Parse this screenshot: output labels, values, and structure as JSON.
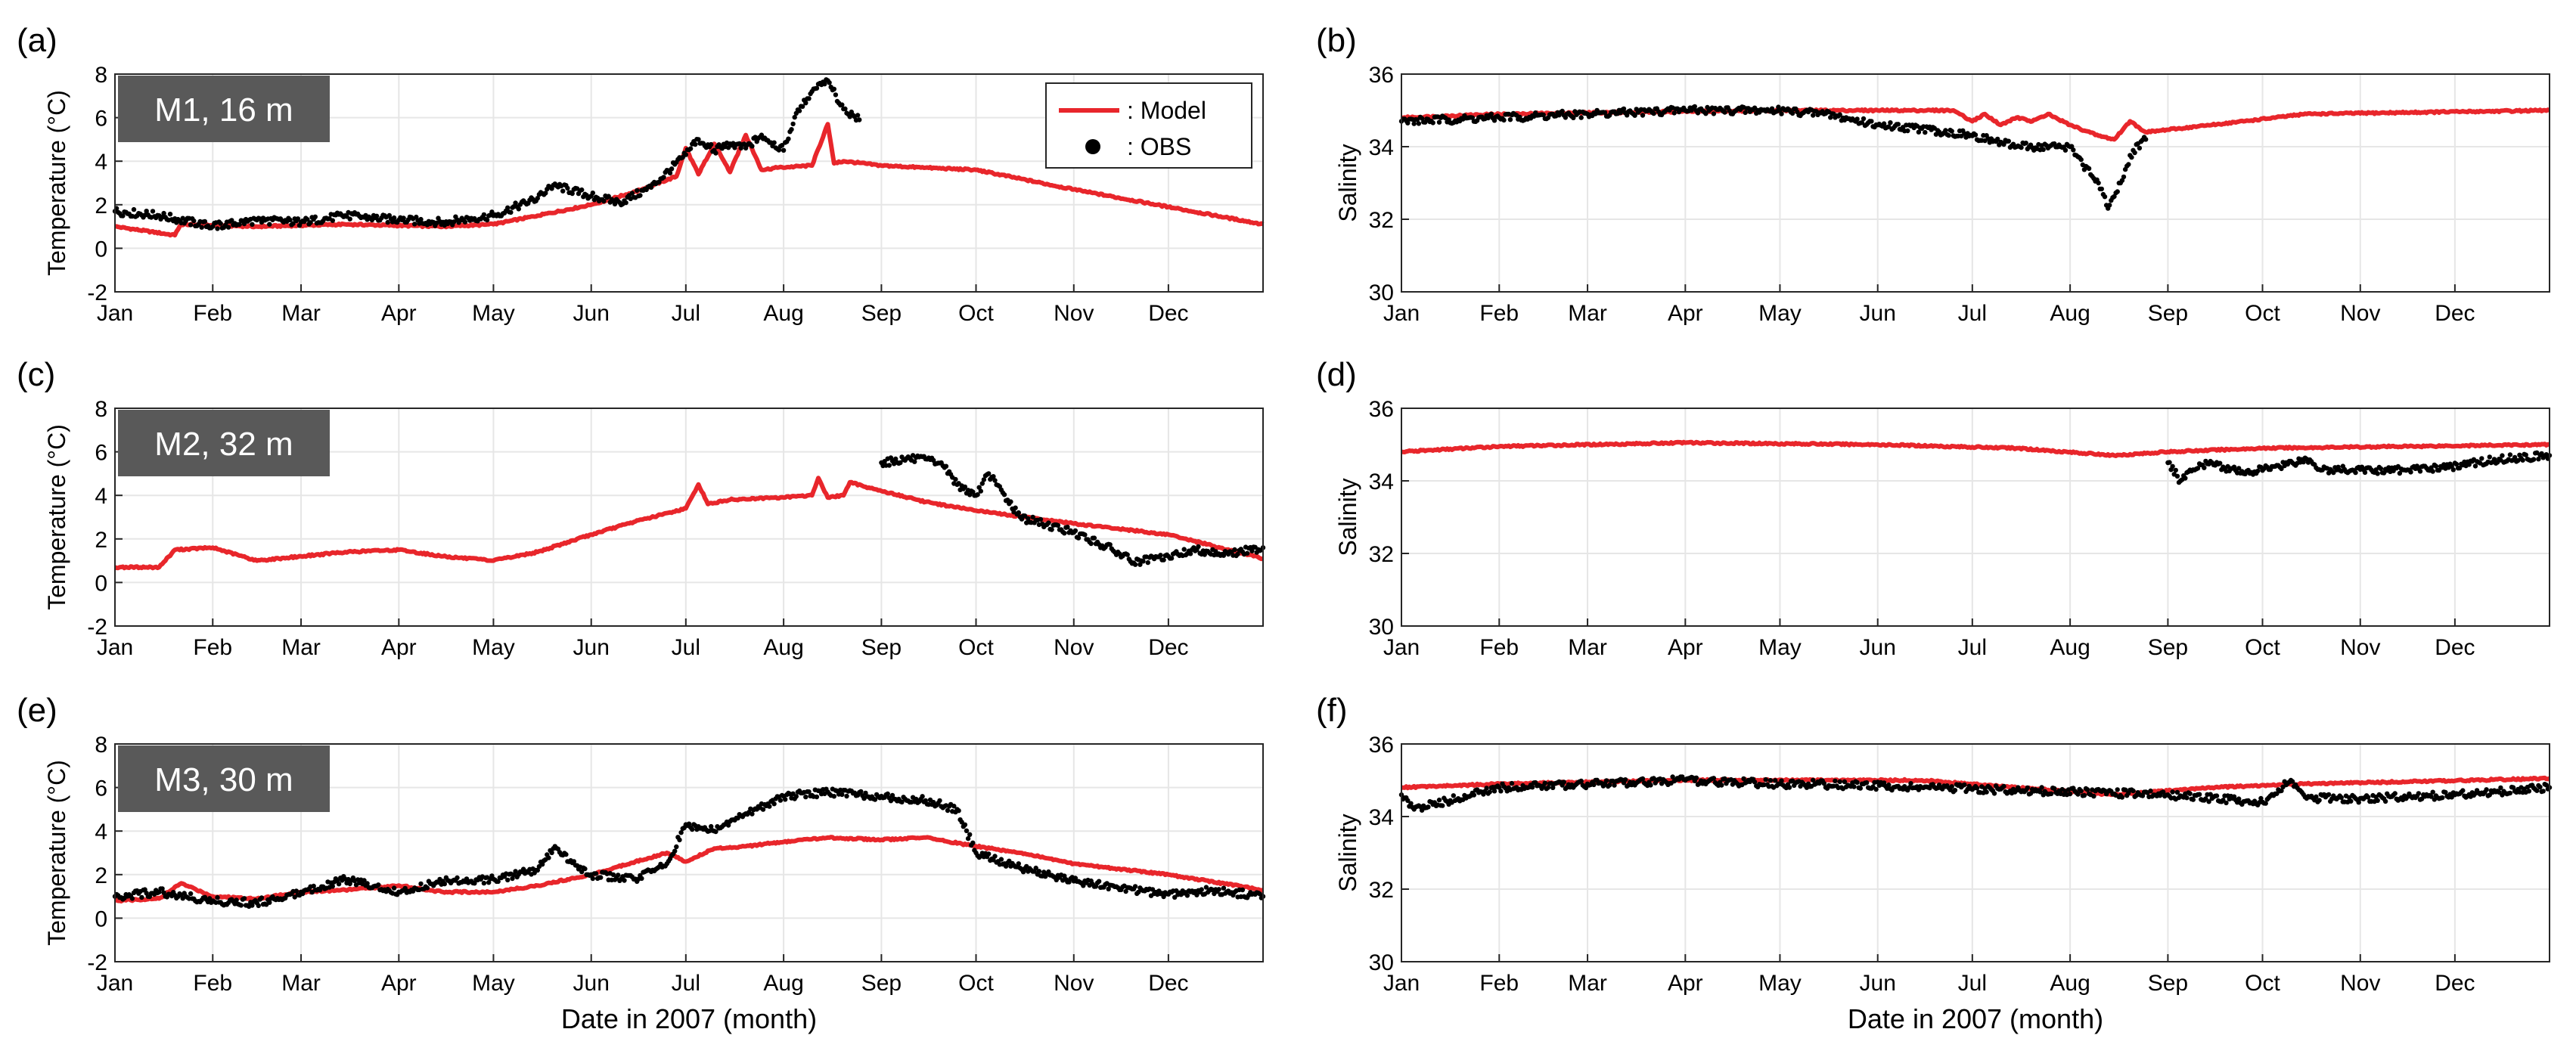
{
  "colors": {
    "model": "#e8262b",
    "obs": "#000000",
    "grid": "#e6e6e6",
    "axes": "#262626",
    "site_label_bg": "#595959",
    "site_label_text": "#ffffff"
  },
  "chart_data": [
    {
      "panel": "(a)",
      "type": "line",
      "site_label": "M1, 16 m",
      "ylabel": "Temperature (°C)",
      "xlabel": "",
      "ylim": [
        -2,
        8
      ],
      "yticks": [
        -2,
        0,
        2,
        4,
        6,
        8
      ],
      "xlim": [
        "2007-01-01",
        "2007-12-31"
      ],
      "xticks": [
        "Jan",
        "Feb",
        "Mar",
        "Apr",
        "May",
        "Jun",
        "Jul",
        "Aug",
        "Sep",
        "Oct",
        "Nov",
        "Dec"
      ],
      "grid": true,
      "legend": "top-right",
      "series": [
        {
          "name": "Model",
          "style": "line",
          "color": "#e8262b",
          "x": [
            "2007-01-01",
            "2007-01-20",
            "2007-01-22",
            "2007-02-15",
            "2007-03-15",
            "2007-04-15",
            "2007-05-01",
            "2007-05-15",
            "2007-06-01",
            "2007-06-15",
            "2007-06-28",
            "2007-07-01",
            "2007-07-05",
            "2007-07-10",
            "2007-07-15",
            "2007-07-20",
            "2007-07-25",
            "2007-07-30",
            "2007-08-10",
            "2007-08-15",
            "2007-08-17",
            "2007-08-20",
            "2007-09-01",
            "2007-09-15",
            "2007-10-01",
            "2007-11-01",
            "2007-12-01",
            "2007-12-31"
          ],
          "y": [
            1.0,
            0.6,
            1.1,
            1.0,
            1.1,
            1.0,
            1.1,
            1.5,
            2.0,
            2.6,
            3.3,
            4.6,
            3.4,
            4.8,
            3.5,
            5.2,
            3.6,
            3.7,
            3.8,
            5.7,
            3.9,
            4.0,
            3.8,
            3.7,
            3.6,
            2.7,
            1.9,
            1.1
          ]
        },
        {
          "name": "OBS",
          "style": "dots",
          "color": "#000000",
          "x": [
            "2007-01-01",
            "2007-01-15",
            "2007-02-01",
            "2007-02-15",
            "2007-03-01",
            "2007-03-15",
            "2007-04-01",
            "2007-04-15",
            "2007-05-01",
            "2007-05-15",
            "2007-05-20",
            "2007-06-01",
            "2007-06-10",
            "2007-06-20",
            "2007-07-01",
            "2007-07-05",
            "2007-07-10",
            "2007-07-15",
            "2007-07-20",
            "2007-07-25",
            "2007-08-01",
            "2007-08-05",
            "2007-08-10",
            "2007-08-15",
            "2007-08-20",
            "2007-08-25"
          ],
          "y": [
            1.7,
            1.5,
            1.0,
            1.3,
            1.2,
            1.5,
            1.3,
            1.2,
            1.5,
            2.3,
            2.9,
            2.4,
            2.1,
            2.8,
            4.3,
            5.0,
            4.5,
            4.8,
            4.6,
            5.2,
            4.5,
            6.2,
            7.2,
            7.7,
            6.4,
            5.9
          ]
        }
      ]
    },
    {
      "panel": "(b)",
      "type": "line",
      "site_label": "",
      "ylabel": "Salinity",
      "xlabel": "",
      "ylim": [
        30,
        36
      ],
      "yticks": [
        30,
        32,
        34,
        36
      ],
      "xlim": [
        "2007-01-01",
        "2007-12-31"
      ],
      "xticks": [
        "Jan",
        "Feb",
        "Mar",
        "Apr",
        "May",
        "Jun",
        "Jul",
        "Aug",
        "Sep",
        "Oct",
        "Nov",
        "Dec"
      ],
      "grid": true,
      "series": [
        {
          "name": "Model",
          "style": "line",
          "color": "#e8262b",
          "x": [
            "2007-01-01",
            "2007-02-01",
            "2007-03-15",
            "2007-05-01",
            "2007-06-01",
            "2007-06-25",
            "2007-07-01",
            "2007-07-05",
            "2007-07-10",
            "2007-07-15",
            "2007-07-20",
            "2007-07-25",
            "2007-08-01",
            "2007-08-10",
            "2007-08-15",
            "2007-08-20",
            "2007-08-25",
            "2007-09-15",
            "2007-10-15",
            "2007-12-31"
          ],
          "y": [
            34.8,
            34.9,
            34.95,
            35.0,
            35.0,
            35.0,
            34.7,
            34.9,
            34.6,
            34.8,
            34.7,
            34.9,
            34.6,
            34.3,
            34.2,
            34.7,
            34.4,
            34.6,
            34.9,
            35.0
          ]
        },
        {
          "name": "OBS",
          "style": "dots",
          "color": "#000000",
          "x": [
            "2007-01-01",
            "2007-02-01",
            "2007-03-01",
            "2007-04-01",
            "2007-05-01",
            "2007-05-15",
            "2007-06-01",
            "2007-06-15",
            "2007-07-01",
            "2007-07-15",
            "2007-08-01",
            "2007-08-05",
            "2007-08-10",
            "2007-08-13",
            "2007-08-17",
            "2007-08-21",
            "2007-08-25"
          ],
          "y": [
            34.7,
            34.8,
            34.9,
            35.0,
            35.0,
            34.9,
            34.6,
            34.5,
            34.3,
            34.0,
            34.0,
            33.5,
            33.0,
            32.3,
            33.0,
            33.9,
            34.2
          ]
        }
      ]
    },
    {
      "panel": "(c)",
      "type": "line",
      "site_label": "M2, 32 m",
      "ylabel": "Temperature (°C)",
      "xlabel": "",
      "ylim": [
        -2,
        8
      ],
      "yticks": [
        -2,
        0,
        2,
        4,
        6,
        8
      ],
      "xlim": [
        "2007-01-01",
        "2007-12-31"
      ],
      "xticks": [
        "Jan",
        "Feb",
        "Mar",
        "Apr",
        "May",
        "Jun",
        "Jul",
        "Aug",
        "Sep",
        "Oct",
        "Nov",
        "Dec"
      ],
      "grid": true,
      "series": [
        {
          "name": "Model",
          "style": "line",
          "color": "#e8262b",
          "x": [
            "2007-01-01",
            "2007-01-15",
            "2007-01-20",
            "2007-02-01",
            "2007-02-15",
            "2007-03-01",
            "2007-03-15",
            "2007-04-01",
            "2007-04-15",
            "2007-05-01",
            "2007-05-15",
            "2007-06-01",
            "2007-06-15",
            "2007-07-01",
            "2007-07-05",
            "2007-07-08",
            "2007-07-15",
            "2007-08-01",
            "2007-08-10",
            "2007-08-12",
            "2007-08-15",
            "2007-08-20",
            "2007-08-22",
            "2007-09-01",
            "2007-09-15",
            "2007-10-01",
            "2007-11-01",
            "2007-12-01",
            "2007-12-31"
          ],
          "y": [
            0.7,
            0.7,
            1.5,
            1.6,
            1.0,
            1.2,
            1.4,
            1.5,
            1.2,
            1.0,
            1.4,
            2.2,
            2.8,
            3.4,
            4.5,
            3.6,
            3.8,
            3.9,
            4.0,
            4.8,
            3.9,
            4.0,
            4.6,
            4.2,
            3.7,
            3.3,
            2.7,
            2.2,
            1.1
          ]
        },
        {
          "name": "OBS",
          "style": "dots",
          "color": "#000000",
          "x": [
            "2007-09-01",
            "2007-09-10",
            "2007-09-20",
            "2007-09-25",
            "2007-10-01",
            "2007-10-05",
            "2007-10-15",
            "2007-11-01",
            "2007-11-15",
            "2007-11-20",
            "2007-12-01",
            "2007-12-10",
            "2007-12-20",
            "2007-12-31"
          ],
          "y": [
            5.5,
            5.7,
            5.5,
            4.5,
            4.0,
            5.0,
            3.0,
            2.3,
            1.4,
            0.9,
            1.2,
            1.5,
            1.3,
            1.6
          ]
        }
      ]
    },
    {
      "panel": "(d)",
      "type": "line",
      "site_label": "",
      "ylabel": "Salinity",
      "xlabel": "",
      "ylim": [
        30,
        36
      ],
      "yticks": [
        30,
        32,
        34,
        36
      ],
      "xlim": [
        "2007-01-01",
        "2007-12-31"
      ],
      "xticks": [
        "Jan",
        "Feb",
        "Mar",
        "Apr",
        "May",
        "Jun",
        "Jul",
        "Aug",
        "Sep",
        "Oct",
        "Nov",
        "Dec"
      ],
      "grid": true,
      "series": [
        {
          "name": "Model",
          "style": "line",
          "color": "#e8262b",
          "x": [
            "2007-01-01",
            "2007-02-01",
            "2007-04-01",
            "2007-06-01",
            "2007-07-15",
            "2007-08-15",
            "2007-09-01",
            "2007-10-01",
            "2007-12-31"
          ],
          "y": [
            34.8,
            34.95,
            35.05,
            35.0,
            34.9,
            34.7,
            34.8,
            34.9,
            35.0
          ]
        },
        {
          "name": "OBS",
          "style": "dots",
          "color": "#000000",
          "x": [
            "2007-09-01",
            "2007-09-05",
            "2007-09-08",
            "2007-09-15",
            "2007-09-25",
            "2007-10-05",
            "2007-10-15",
            "2007-10-20",
            "2007-11-15",
            "2007-11-30",
            "2007-12-15",
            "2007-12-31"
          ],
          "y": [
            34.5,
            34.0,
            34.3,
            34.5,
            34.2,
            34.4,
            34.6,
            34.3,
            34.3,
            34.4,
            34.6,
            34.7
          ]
        }
      ]
    },
    {
      "panel": "(e)",
      "type": "line",
      "site_label": "M3, 30 m",
      "ylabel": "Temperature (°C)",
      "xlabel": "Date in 2007 (month)",
      "ylim": [
        -2,
        8
      ],
      "yticks": [
        -2,
        0,
        2,
        4,
        6,
        8
      ],
      "xlim": [
        "2007-01-01",
        "2007-12-31"
      ],
      "xticks": [
        "Jan",
        "Feb",
        "Mar",
        "Apr",
        "May",
        "Jun",
        "Jul",
        "Aug",
        "Sep",
        "Oct",
        "Nov",
        "Dec"
      ],
      "grid": true,
      "series": [
        {
          "name": "Model",
          "style": "line",
          "color": "#e8262b",
          "x": [
            "2007-01-01",
            "2007-01-15",
            "2007-01-22",
            "2007-02-01",
            "2007-02-15",
            "2007-03-01",
            "2007-03-15",
            "2007-04-01",
            "2007-04-15",
            "2007-05-01",
            "2007-05-15",
            "2007-06-01",
            "2007-06-15",
            "2007-06-25",
            "2007-07-01",
            "2007-07-10",
            "2007-07-20",
            "2007-08-01",
            "2007-08-15",
            "2007-09-01",
            "2007-09-15",
            "2007-10-01",
            "2007-10-15",
            "2007-11-01",
            "2007-12-01",
            "2007-12-31"
          ],
          "y": [
            0.8,
            0.9,
            1.6,
            1.0,
            0.9,
            1.2,
            1.3,
            1.5,
            1.2,
            1.2,
            1.5,
            2.0,
            2.6,
            3.0,
            2.6,
            3.2,
            3.3,
            3.5,
            3.7,
            3.6,
            3.7,
            3.3,
            3.0,
            2.5,
            2.0,
            1.3
          ]
        },
        {
          "name": "OBS",
          "style": "dots",
          "color": "#000000",
          "x": [
            "2007-01-01",
            "2007-01-15",
            "2007-02-01",
            "2007-02-15",
            "2007-03-01",
            "2007-03-15",
            "2007-04-01",
            "2007-04-15",
            "2007-05-01",
            "2007-05-15",
            "2007-05-20",
            "2007-06-01",
            "2007-06-15",
            "2007-06-25",
            "2007-07-01",
            "2007-07-10",
            "2007-07-20",
            "2007-08-01",
            "2007-08-15",
            "2007-09-01",
            "2007-09-15",
            "2007-09-25",
            "2007-10-01",
            "2007-10-15",
            "2007-11-01",
            "2007-11-15",
            "2007-12-01",
            "2007-12-15",
            "2007-12-31"
          ],
          "y": [
            1.0,
            1.2,
            0.8,
            0.7,
            1.2,
            1.8,
            1.2,
            1.7,
            1.8,
            2.2,
            3.2,
            2.0,
            1.8,
            2.5,
            4.3,
            4.0,
            4.8,
            5.6,
            5.8,
            5.6,
            5.4,
            5.0,
            3.0,
            2.3,
            1.7,
            1.4,
            1.1,
            1.3,
            1.0
          ]
        }
      ]
    },
    {
      "panel": "(f)",
      "type": "line",
      "site_label": "",
      "ylabel": "Salinity",
      "xlabel": "Date in 2007 (month)",
      "ylim": [
        30,
        36
      ],
      "yticks": [
        30,
        32,
        34,
        36
      ],
      "xlim": [
        "2007-01-01",
        "2007-12-31"
      ],
      "xticks": [
        "Jan",
        "Feb",
        "Mar",
        "Apr",
        "May",
        "Jun",
        "Jul",
        "Aug",
        "Sep",
        "Oct",
        "Nov",
        "Dec"
      ],
      "grid": true,
      "series": [
        {
          "name": "Model",
          "style": "line",
          "color": "#e8262b",
          "x": [
            "2007-01-01",
            "2007-02-01",
            "2007-04-01",
            "2007-06-15",
            "2007-07-15",
            "2007-08-15",
            "2007-09-15",
            "2007-10-15",
            "2007-12-31"
          ],
          "y": [
            34.8,
            34.9,
            35.0,
            35.0,
            34.8,
            34.6,
            34.8,
            34.9,
            35.05
          ]
        },
        {
          "name": "OBS",
          "style": "dots",
          "color": "#000000",
          "x": [
            "2007-01-01",
            "2007-01-05",
            "2007-02-01",
            "2007-03-01",
            "2007-04-01",
            "2007-05-01",
            "2007-05-10",
            "2007-09-01",
            "2007-09-15",
            "2007-10-01",
            "2007-10-10",
            "2007-10-15",
            "2007-11-01",
            "2007-12-01",
            "2007-12-31"
          ],
          "y": [
            34.6,
            34.2,
            34.8,
            34.9,
            35.0,
            34.9,
            34.9,
            34.6,
            34.5,
            34.4,
            35.0,
            34.5,
            34.5,
            34.6,
            34.8
          ]
        }
      ]
    }
  ],
  "legend": {
    "model_label": ": Model",
    "obs_label": ": OBS"
  }
}
